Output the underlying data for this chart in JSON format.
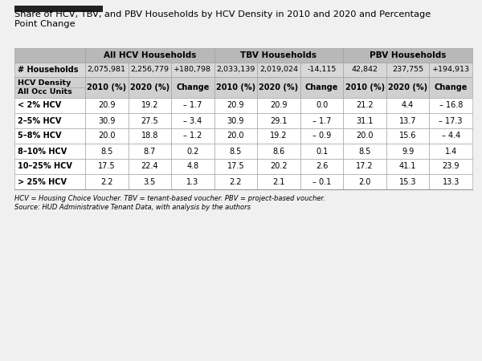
{
  "title": "Share of HCV, TBV, and PBV Households by HCV Density in 2010 and 2020 and Percentage\nPoint Change",
  "header_groups": [
    "All HCV Households",
    "TBV Households",
    "PBV Households"
  ],
  "households_row": [
    "# Households",
    "2,075,981",
    "2,256,779",
    "+180,798",
    "2,033,139",
    "2,019,024",
    "-14,115",
    "42,842",
    "237,755",
    "+194,913"
  ],
  "col_headers": [
    "2010 (%)",
    "2020 (%)",
    "Change",
    "2010 (%)",
    "2020 (%)",
    "Change",
    "2010 (%)",
    "2020 (%)",
    "Change"
  ],
  "density_rows": [
    [
      "< 2% HCV",
      "20.9",
      "19.2",
      "– 1.7",
      "20.9",
      "20.9",
      "0.0",
      "21.2",
      "4.4",
      "– 16.8"
    ],
    [
      "2–5% HCV",
      "30.9",
      "27.5",
      "– 3.4",
      "30.9",
      "29.1",
      "– 1.7",
      "31.1",
      "13.7",
      "– 17.3"
    ],
    [
      "5–8% HCV",
      "20.0",
      "18.8",
      "– 1.2",
      "20.0",
      "19.2",
      "– 0.9",
      "20.0",
      "15.6",
      "– 4.4"
    ],
    [
      "8–10% HCV",
      "8.5",
      "8.7",
      "0.2",
      "8.5",
      "8.6",
      "0.1",
      "8.5",
      "9.9",
      "1.4"
    ],
    [
      "10–25% HCV",
      "17.5",
      "22.4",
      "4.8",
      "17.5",
      "20.2",
      "2.6",
      "17.2",
      "41.1",
      "23.9"
    ],
    [
      "> 25% HCV",
      "2.2",
      "3.5",
      "1.3",
      "2.2",
      "2.1",
      "– 0.1",
      "2.0",
      "15.3",
      "13.3"
    ]
  ],
  "footnotes": [
    "HCV = Housing Choice Voucher. TBV = tenant-based voucher. PBV = project-based voucher.",
    "Source: HUD Administrative Tenant Data, with analysis by the authors"
  ],
  "bg_color": "#f0f0f0",
  "accent_bar_color": "#222222",
  "header_group_bg": "#b8b8b8",
  "households_bg": "#d8d8d8",
  "col_header_bg": "#d0d0d0",
  "data_bg_odd": "#ffffff",
  "data_bg_even": "#ffffff",
  "border_color": "#999999",
  "text_color": "#000000"
}
